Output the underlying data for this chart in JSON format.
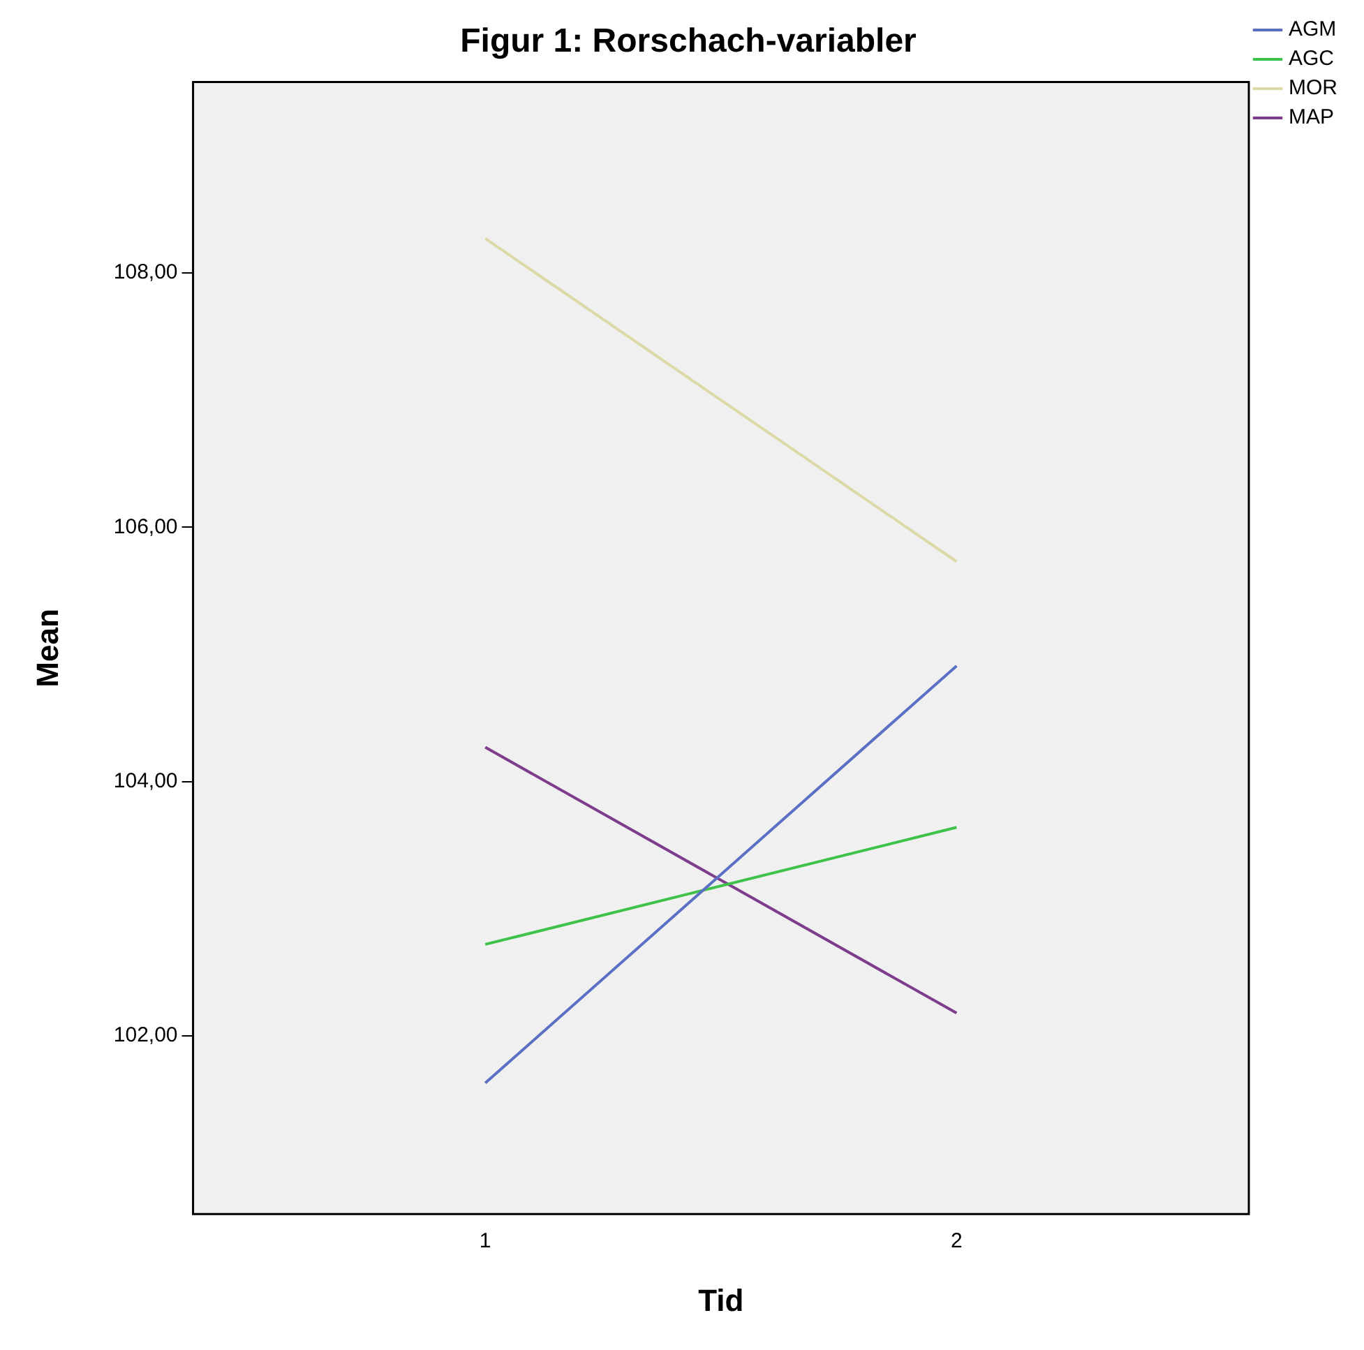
{
  "chart_data": {
    "type": "line",
    "title": "Figur 1: Rorschach-variabler",
    "xlabel": "Tid",
    "ylabel": "Mean",
    "x": [
      1,
      2
    ],
    "xlim": [
      0.38,
      2.62
    ],
    "xticks": [
      1,
      2
    ],
    "ylim": [
      100.6,
      109.5
    ],
    "yticks": [
      {
        "value": 102,
        "label": "102,00"
      },
      {
        "value": 104,
        "label": "104,00"
      },
      {
        "value": 106,
        "label": "106,00"
      },
      {
        "value": 108,
        "label": "108,00"
      }
    ],
    "series": [
      {
        "name": "AGM",
        "color": "#5b6fc4",
        "values": [
          101.63,
          104.91
        ]
      },
      {
        "name": "AGC",
        "color": "#3fc24a",
        "values": [
          102.72,
          103.64
        ]
      },
      {
        "name": "MOR",
        "color": "#ddd9a6",
        "values": [
          108.27,
          105.73
        ]
      },
      {
        "name": "MAP",
        "color": "#7d3d8c",
        "values": [
          104.27,
          102.18
        ]
      }
    ],
    "grid": false,
    "legend": "top right",
    "marker": "none",
    "line_style": "solid"
  }
}
